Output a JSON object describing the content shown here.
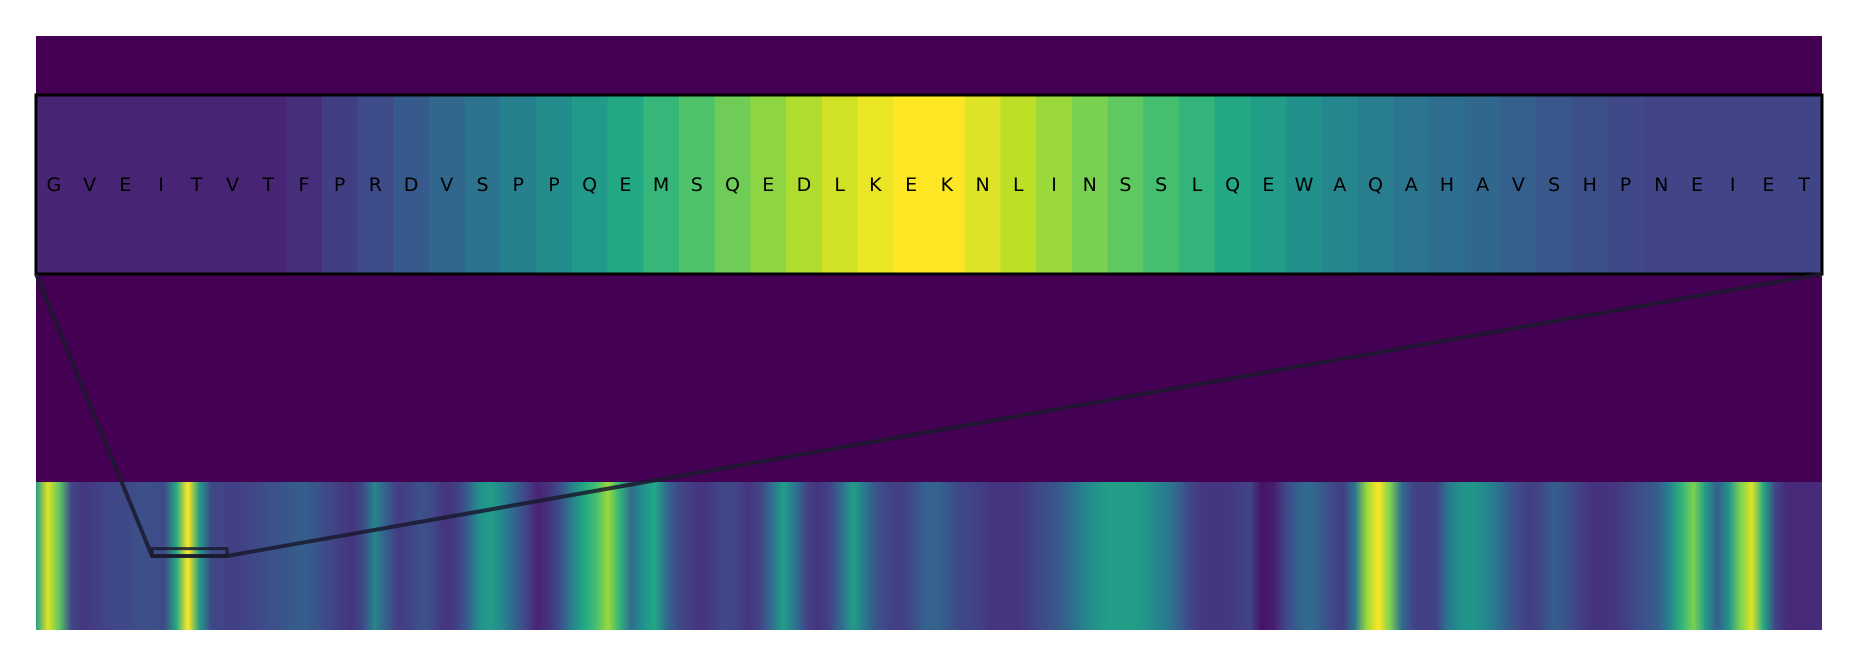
{
  "chart_data": {
    "type": "heatmap",
    "colormap": "viridis",
    "colors": {
      "background": "#440154",
      "frame": "#000000",
      "connector": "#1a1a2e",
      "text": "#000000"
    },
    "zoom": {
      "residues": [
        "G",
        "V",
        "E",
        "I",
        "T",
        "V",
        "T",
        "F",
        "P",
        "R",
        "D",
        "V",
        "S",
        "P",
        "P",
        "Q",
        "E",
        "M",
        "S",
        "Q",
        "E",
        "D",
        "L",
        "K",
        "E",
        "K",
        "N",
        "L",
        "I",
        "N",
        "S",
        "S",
        "L",
        "Q",
        "E",
        "W",
        "A",
        "Q",
        "A",
        "H",
        "A",
        "V",
        "S",
        "H",
        "P",
        "N",
        "E",
        "I",
        "E",
        "T"
      ],
      "values": [
        0.1,
        0.1,
        0.1,
        0.1,
        0.1,
        0.1,
        0.1,
        0.13,
        0.18,
        0.23,
        0.28,
        0.33,
        0.38,
        0.43,
        0.48,
        0.54,
        0.6,
        0.66,
        0.72,
        0.78,
        0.83,
        0.88,
        0.93,
        0.97,
        1.0,
        1.0,
        0.95,
        0.9,
        0.85,
        0.8,
        0.75,
        0.7,
        0.65,
        0.6,
        0.55,
        0.5,
        0.46,
        0.42,
        0.39,
        0.36,
        0.33,
        0.3,
        0.27,
        0.24,
        0.22,
        0.2,
        0.2,
        0.2,
        0.2,
        0.2
      ]
    },
    "overview": {
      "values": [
        0.55,
        0.95,
        0.75,
        0.22,
        0.16,
        0.18,
        0.2,
        0.22,
        0.22,
        0.24,
        0.24,
        0.22,
        0.6,
        1.0,
        0.55,
        0.22,
        0.2,
        0.18,
        0.2,
        0.22,
        0.24,
        0.26,
        0.28,
        0.3,
        0.26,
        0.22,
        0.18,
        0.15,
        0.22,
        0.45,
        0.3,
        0.18,
        0.2,
        0.25,
        0.22,
        0.15,
        0.18,
        0.3,
        0.5,
        0.55,
        0.45,
        0.32,
        0.2,
        0.1,
        0.15,
        0.25,
        0.45,
        0.6,
        0.7,
        0.85,
        0.65,
        0.35,
        0.5,
        0.6,
        0.35,
        0.22,
        0.18,
        0.15,
        0.18,
        0.22,
        0.2,
        0.15,
        0.2,
        0.35,
        0.55,
        0.4,
        0.2,
        0.15,
        0.2,
        0.35,
        0.55,
        0.4,
        0.25,
        0.2,
        0.18,
        0.22,
        0.3,
        0.32,
        0.28,
        0.22,
        0.2,
        0.18,
        0.15,
        0.15,
        0.15,
        0.18,
        0.22,
        0.25,
        0.3,
        0.38,
        0.45,
        0.52,
        0.55,
        0.56,
        0.55,
        0.52,
        0.46,
        0.4,
        0.3,
        0.2,
        0.16,
        0.15,
        0.16,
        0.18,
        0.2,
        0.05,
        0.08,
        0.2,
        0.3,
        0.35,
        0.3,
        0.22,
        0.18,
        0.4,
        0.85,
        1.0,
        0.8,
        0.35,
        0.2,
        0.18,
        0.2,
        0.4,
        0.5,
        0.52,
        0.48,
        0.4,
        0.3,
        0.22,
        0.18,
        0.22,
        0.3,
        0.26,
        0.2,
        0.16,
        0.14,
        0.15,
        0.18,
        0.22,
        0.26,
        0.3,
        0.45,
        0.65,
        0.8,
        0.55,
        0.3,
        0.5,
        0.8,
        0.95,
        0.6,
        0.2,
        0.12,
        0.12,
        0.12,
        0.12
      ],
      "zoom_window": [
        0.065,
        0.107
      ]
    }
  }
}
